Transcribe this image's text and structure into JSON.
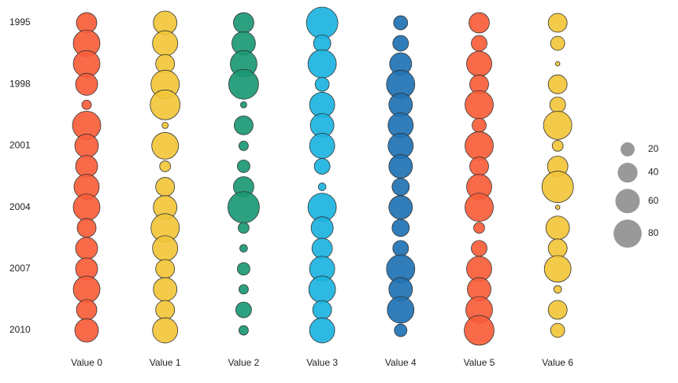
{
  "chart_data": {
    "type": "bubble",
    "rows": [
      "1995",
      null,
      null,
      "1998",
      null,
      null,
      "2001",
      null,
      null,
      "2004",
      null,
      null,
      "2007",
      null,
      null,
      "2010"
    ],
    "series": [
      {
        "name": "Value 0",
        "color": "#f95d3a",
        "values": [
          42,
          72,
          72,
          49,
          9,
          81,
          56,
          49,
          64,
          72,
          36,
          49,
          49,
          72,
          42,
          56
        ]
      },
      {
        "name": "Value 1",
        "color": "#f2c53a",
        "values": [
          56,
          64,
          36,
          81,
          90,
          4,
          72,
          12,
          36,
          56,
          81,
          64,
          36,
          56,
          36,
          64
        ]
      },
      {
        "name": "Value 2",
        "color": "#1a9874",
        "values": [
          42,
          56,
          72,
          90,
          4,
          36,
          9,
          16,
          42,
          100,
          12,
          6,
          16,
          9,
          25,
          9
        ]
      },
      {
        "name": "Value 3",
        "color": "#1cb3e0",
        "values": [
          100,
          30,
          81,
          20,
          64,
          56,
          64,
          25,
          6,
          81,
          49,
          42,
          64,
          72,
          36,
          64
        ]
      },
      {
        "name": "Value 4",
        "color": "#1f72b3",
        "values": [
          20,
          25,
          49,
          81,
          56,
          64,
          64,
          56,
          30,
          56,
          30,
          25,
          81,
          56,
          72,
          16
        ]
      },
      {
        "name": "Value 5",
        "color": "#f95d3a",
        "values": [
          42,
          25,
          64,
          36,
          81,
          20,
          81,
          36,
          64,
          81,
          12,
          25,
          64,
          56,
          72,
          90
        ]
      },
      {
        "name": "Value 6",
        "color": "#f2c53a",
        "values": [
          36,
          20,
          2,
          36,
          25,
          81,
          12,
          42,
          100,
          2,
          56,
          36,
          72,
          6,
          36,
          20
        ]
      }
    ],
    "size_legend": [
      20,
      40,
      60,
      80
    ],
    "size_legend_color": "#999999"
  }
}
